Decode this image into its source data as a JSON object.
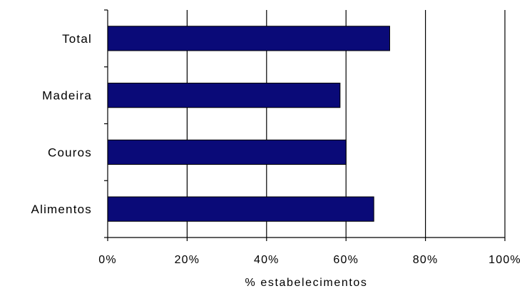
{
  "chart_data": {
    "type": "bar",
    "orientation": "horizontal",
    "categories": [
      "Total",
      "Madeira",
      "Couros",
      "Alimentos"
    ],
    "values": [
      71,
      58.5,
      60,
      67
    ],
    "xlabel": "% estabelecimentos",
    "xlim": [
      0,
      100
    ],
    "xticks": [
      0,
      20,
      40,
      60,
      80,
      100
    ],
    "xtick_labels": [
      "0%",
      "20%",
      "40%",
      "60%",
      "80%",
      "100%"
    ],
    "grid": "vertical",
    "bar_color": "#0a0a78"
  }
}
